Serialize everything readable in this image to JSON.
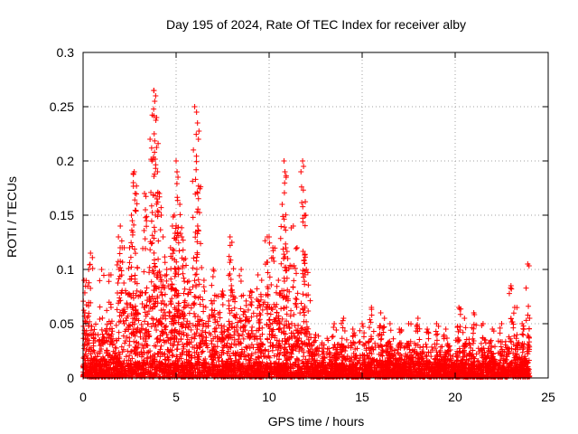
{
  "chart_data": {
    "type": "scatter",
    "title": "Day 195 of 2024, Rate Of TEC Index for receiver alby",
    "xlabel": "GPS time / hours",
    "ylabel": "ROTI / TECUs",
    "xlim": [
      0,
      25
    ],
    "ylim": [
      0,
      0.3
    ],
    "x_ticks": [
      "0",
      "5",
      "10",
      "15",
      "20",
      "25"
    ],
    "y_ticks": [
      "0",
      "0.05",
      "0.1",
      "0.15",
      "0.2",
      "0.25",
      "0.3"
    ],
    "grid": true,
    "marker": "plus",
    "color": "#ff0000",
    "data_range_x": [
      0,
      24
    ],
    "series": [
      {
        "name": "ROTI",
        "points": [
          [
            0.05,
            0.09
          ],
          [
            0.1,
            0.06
          ],
          [
            0.3,
            0.1
          ],
          [
            0.4,
            0.115
          ],
          [
            1.0,
            0.1
          ],
          [
            1.5,
            0.095
          ],
          [
            1.9,
            0.13
          ],
          [
            2.0,
            0.14
          ],
          [
            2.1,
            0.12
          ],
          [
            2.5,
            0.12
          ],
          [
            2.6,
            0.15
          ],
          [
            2.7,
            0.18
          ],
          [
            2.75,
            0.19
          ],
          [
            2.8,
            0.17
          ],
          [
            3.3,
            0.17
          ],
          [
            3.35,
            0.155
          ],
          [
            3.6,
            0.22
          ],
          [
            3.7,
            0.2
          ],
          [
            3.8,
            0.265
          ],
          [
            3.85,
            0.255
          ],
          [
            3.9,
            0.26
          ],
          [
            3.95,
            0.24
          ],
          [
            4.0,
            0.19
          ],
          [
            4.1,
            0.17
          ],
          [
            4.2,
            0.15
          ],
          [
            4.3,
            0.13
          ],
          [
            4.5,
            0.1
          ],
          [
            4.7,
            0.12
          ],
          [
            4.8,
            0.14
          ],
          [
            4.9,
            0.15
          ],
          [
            5.0,
            0.2
          ],
          [
            5.05,
            0.19
          ],
          [
            5.1,
            0.185
          ],
          [
            5.2,
            0.16
          ],
          [
            5.3,
            0.13
          ],
          [
            5.5,
            0.11
          ],
          [
            6.0,
            0.25
          ],
          [
            6.1,
            0.245
          ],
          [
            6.15,
            0.235
          ],
          [
            6.2,
            0.22
          ],
          [
            6.5,
            0.09
          ],
          [
            7.0,
            0.1
          ],
          [
            7.5,
            0.08
          ],
          [
            7.9,
            0.13
          ],
          [
            8.0,
            0.125
          ],
          [
            8.5,
            0.1
          ],
          [
            9.0,
            0.08
          ],
          [
            9.4,
            0.095
          ],
          [
            9.6,
            0.09
          ],
          [
            9.9,
            0.13
          ],
          [
            10.0,
            0.13
          ],
          [
            10.2,
            0.12
          ],
          [
            10.5,
            0.09
          ],
          [
            10.7,
            0.16
          ],
          [
            10.8,
            0.2
          ],
          [
            10.85,
            0.19
          ],
          [
            10.9,
            0.12
          ],
          [
            11.0,
            0.11
          ],
          [
            11.3,
            0.14
          ],
          [
            11.5,
            0.12
          ],
          [
            11.8,
            0.2
          ],
          [
            11.85,
            0.195
          ],
          [
            11.9,
            0.15
          ],
          [
            12.0,
            0.1
          ],
          [
            12.5,
            0.04
          ],
          [
            13.5,
            0.05
          ],
          [
            14.0,
            0.055
          ],
          [
            14.5,
            0.045
          ],
          [
            15.0,
            0.05
          ],
          [
            15.5,
            0.065
          ],
          [
            16.0,
            0.06
          ],
          [
            16.2,
            0.055
          ],
          [
            16.5,
            0.05
          ],
          [
            17.0,
            0.045
          ],
          [
            17.5,
            0.05
          ],
          [
            18.0,
            0.055
          ],
          [
            18.5,
            0.045
          ],
          [
            19.0,
            0.05
          ],
          [
            19.5,
            0.045
          ],
          [
            20.2,
            0.065
          ],
          [
            20.5,
            0.055
          ],
          [
            21.0,
            0.06
          ],
          [
            21.5,
            0.05
          ],
          [
            22.0,
            0.045
          ],
          [
            22.5,
            0.05
          ],
          [
            23.0,
            0.085
          ],
          [
            23.2,
            0.065
          ],
          [
            23.6,
            0.05
          ],
          [
            23.9,
            0.105
          ],
          [
            24.0,
            0.055
          ]
        ]
      }
    ]
  }
}
